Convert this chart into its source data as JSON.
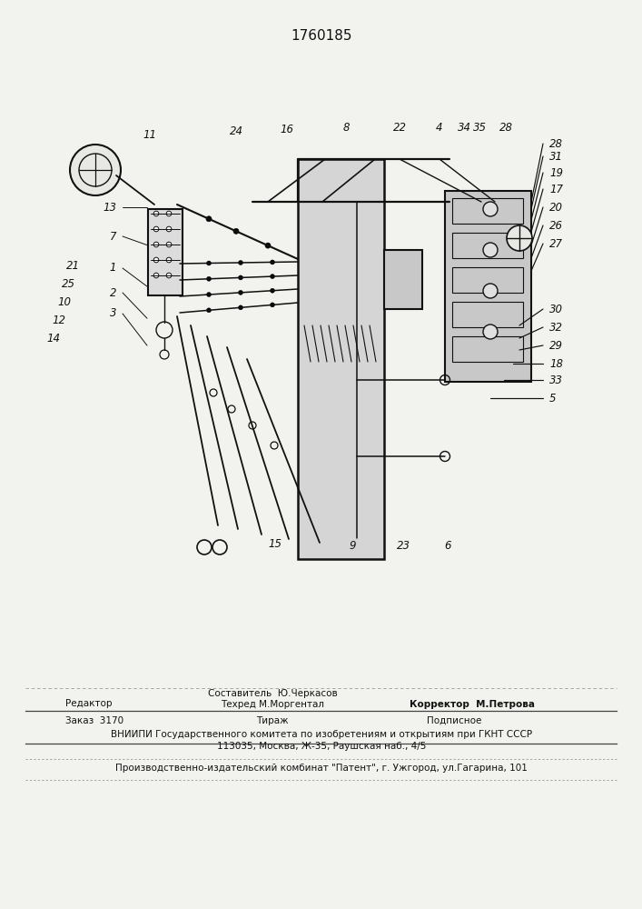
{
  "patent_number": "1760185",
  "bg_color": "#f2f2ee",
  "line_color": "#111111",
  "text_color": "#111111",
  "footer": {
    "sestavitel": "Составитель  Ю.Черкасов",
    "redaktor": "Редактор",
    "tehred": "Техред М.Моргентал",
    "korrektor": "Корректор  М.Петрова",
    "zakaz": "Заказ  3170",
    "tirazh": "Тираж",
    "podpisnoe": "Подписное",
    "vniipи_1": "ВНИИПИ Государственного комитета по изобретениям и открытиям при ГКНТ СССР",
    "vniipи_2": "113035, Москва, Ж-35, Раушская наб., 4/5",
    "proizv": "Производственно-издательский комбинат \"Патент\", г. Ужгород, ул.Гагарина, 101"
  },
  "top_labels": [
    [
      165,
      148,
      "11"
    ],
    [
      260,
      145,
      "24"
    ],
    [
      316,
      142,
      "16"
    ],
    [
      381,
      140,
      "8"
    ],
    [
      440,
      140,
      "22"
    ],
    [
      484,
      140,
      "4"
    ],
    [
      511,
      140,
      "34"
    ],
    [
      528,
      140,
      "35"
    ],
    [
      557,
      140,
      "28"
    ]
  ],
  "right_labels": [
    [
      605,
      158,
      "28"
    ],
    [
      605,
      172,
      "31"
    ],
    [
      605,
      190,
      "19"
    ],
    [
      605,
      208,
      "17"
    ],
    [
      605,
      228,
      "20"
    ],
    [
      605,
      248,
      "26"
    ],
    [
      605,
      268,
      "27"
    ],
    [
      605,
      340,
      "30"
    ],
    [
      605,
      360,
      "32"
    ],
    [
      605,
      380,
      "29"
    ],
    [
      605,
      400,
      "18"
    ],
    [
      605,
      418,
      "33"
    ],
    [
      605,
      438,
      "5"
    ]
  ],
  "left_labels": [
    [
      88,
      292,
      "21"
    ],
    [
      83,
      312,
      "25"
    ],
    [
      78,
      332,
      "10"
    ],
    [
      72,
      352,
      "12"
    ],
    [
      66,
      372,
      "14"
    ]
  ],
  "bot_labels": [
    [
      303,
      598,
      "15"
    ],
    [
      388,
      600,
      "9"
    ],
    [
      444,
      600,
      "23"
    ],
    [
      493,
      600,
      "6"
    ]
  ]
}
